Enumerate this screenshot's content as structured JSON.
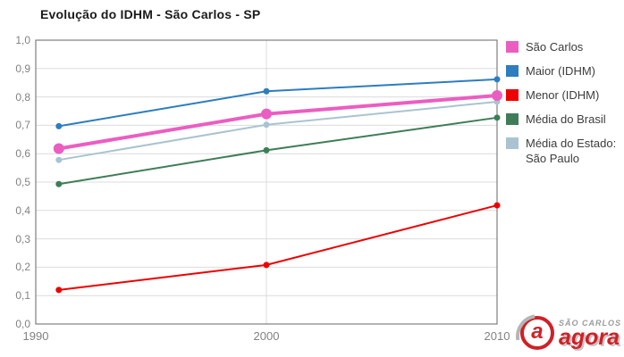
{
  "title": "Evolução do IDHM - São Carlos - SP",
  "chart_data": {
    "type": "line",
    "title": "Evolução do IDHM - São Carlos - SP",
    "xlabel": "",
    "ylabel": "",
    "x": [
      1991,
      2000,
      2010
    ],
    "xlim": [
      1990,
      2010
    ],
    "ylim": [
      0.0,
      1.0
    ],
    "grid": true,
    "legend_position": "right",
    "x_ticks": [
      {
        "label": "1990",
        "v": 1990
      },
      {
        "label": "2000",
        "v": 2000
      },
      {
        "label": "2010",
        "v": 2010
      }
    ],
    "y_ticks": [
      {
        "label": "1,0",
        "v": 1.0
      },
      {
        "label": "0,9",
        "v": 0.9
      },
      {
        "label": "0,8",
        "v": 0.8
      },
      {
        "label": "0,7",
        "v": 0.7
      },
      {
        "label": "0,6",
        "v": 0.6
      },
      {
        "label": "0,5",
        "v": 0.5
      },
      {
        "label": "0,4",
        "v": 0.4
      },
      {
        "label": "0,3",
        "v": 0.3
      },
      {
        "label": "0,2",
        "v": 0.2
      },
      {
        "label": "0,1",
        "v": 0.1
      },
      {
        "label": "0,0",
        "v": 0.0
      }
    ],
    "series": [
      {
        "name": "São Carlos",
        "color": "#EB5EC1",
        "values": [
          0.618,
          0.74,
          0.805
        ],
        "emphasis": true
      },
      {
        "name": "Maior (IDHM)",
        "color": "#2D7DBF",
        "values": [
          0.697,
          0.82,
          0.862
        ],
        "emphasis": false
      },
      {
        "name": "Menor (IDHM)",
        "color": "#EE0000",
        "values": [
          0.12,
          0.208,
          0.418
        ],
        "emphasis": false
      },
      {
        "name": "Média do Brasil",
        "color": "#3E7D58",
        "values": [
          0.493,
          0.612,
          0.727
        ],
        "emphasis": false
      },
      {
        "name": "Média do Estado: São Paulo",
        "color": "#A9C4D0",
        "values": [
          0.578,
          0.702,
          0.783
        ],
        "emphasis": false
      }
    ],
    "grid_color": "#dcdcdc",
    "border_color": "#666666",
    "tick_color": "#828282"
  },
  "logo": {
    "icon_letter": "a",
    "top_text": "SÃO CARLOS",
    "bottom_text": "agora"
  }
}
